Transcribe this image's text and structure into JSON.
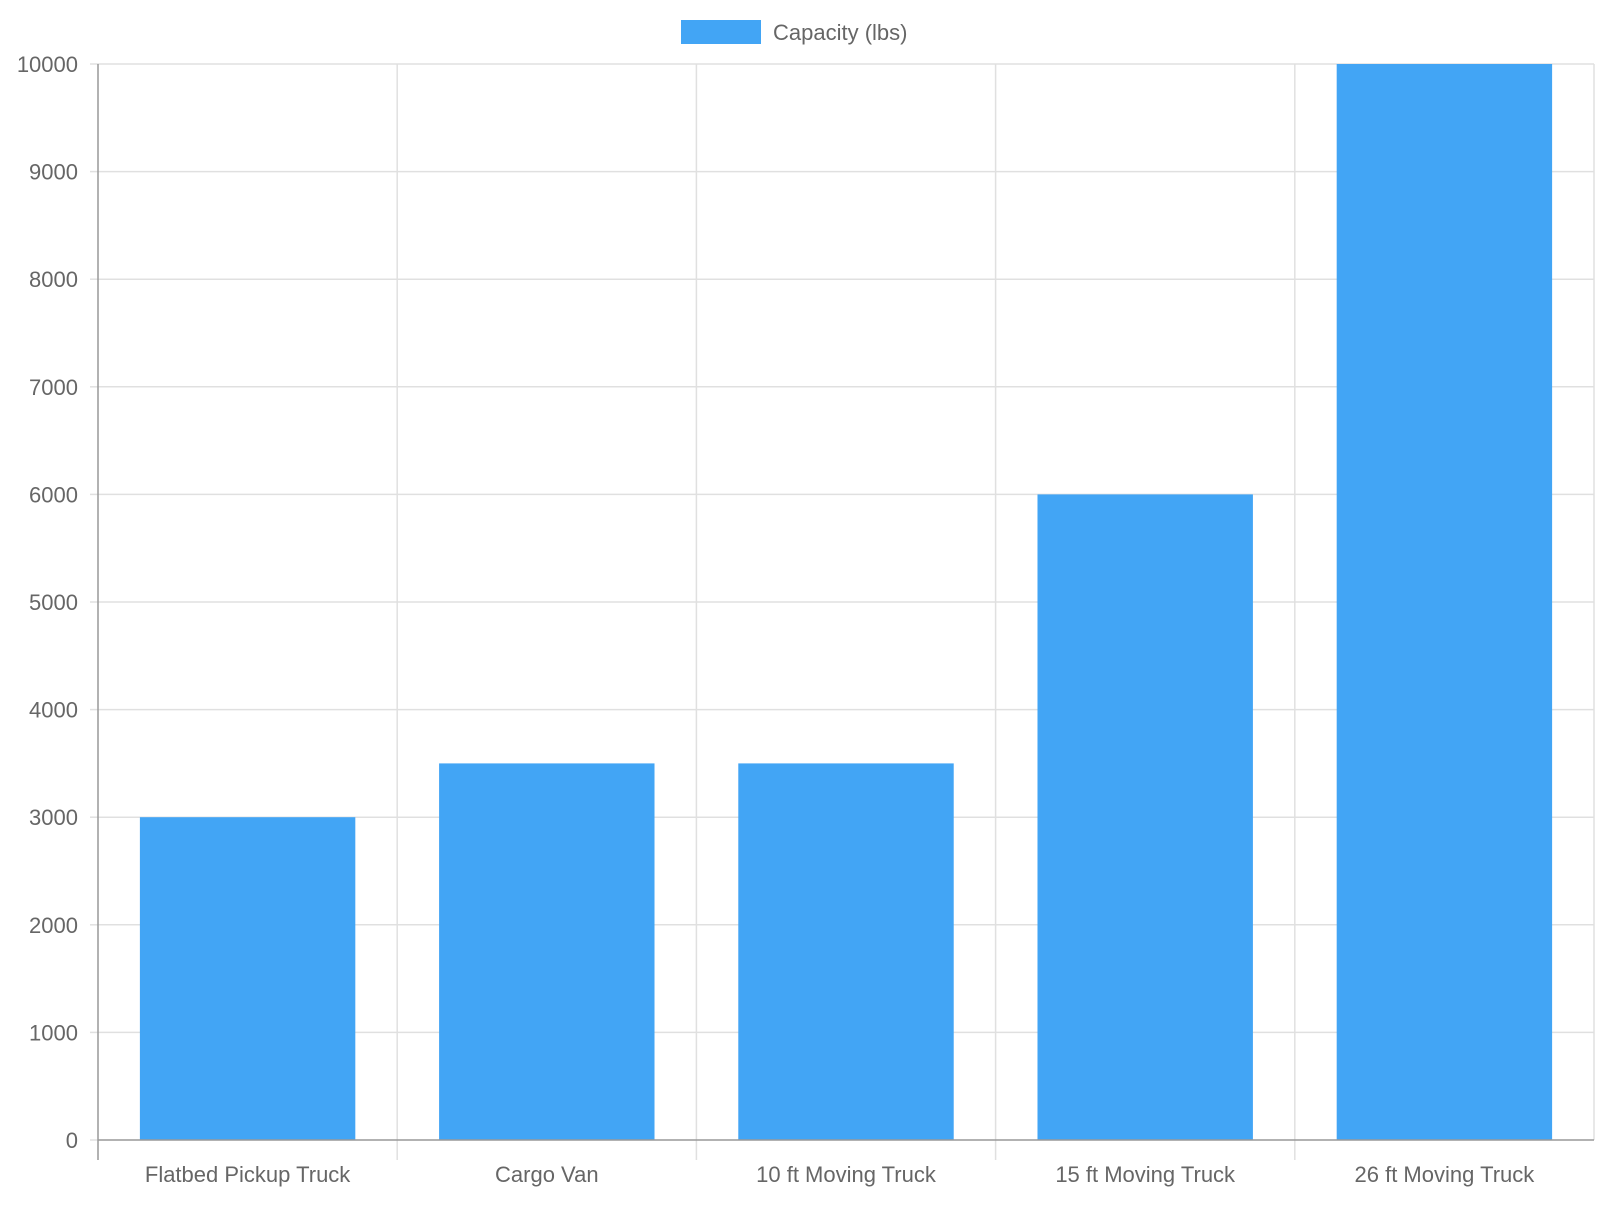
{
  "chart_data": {
    "type": "bar",
    "categories": [
      "Flatbed Pickup Truck",
      "Cargo Van",
      "10 ft Moving Truck",
      "15 ft Moving Truck",
      "26 ft Moving Truck"
    ],
    "series": [
      {
        "name": "Capacity (lbs)",
        "values": [
          3000,
          3500,
          3500,
          6000,
          10000
        ],
        "color": "#42a5f5"
      }
    ],
    "ylim": [
      0,
      10000
    ],
    "yticks": [
      0,
      1000,
      2000,
      3000,
      4000,
      5000,
      6000,
      7000,
      8000,
      9000,
      10000
    ],
    "grid": true,
    "legend_position": "top-center"
  },
  "colors": {
    "grid": "#e0e0e0",
    "axis": "#999999",
    "text": "#666666"
  }
}
